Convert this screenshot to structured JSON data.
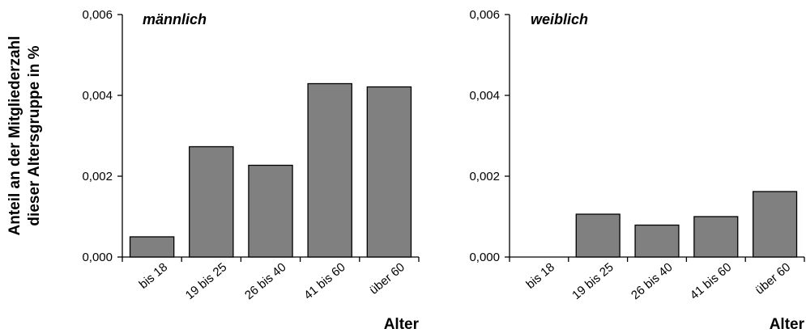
{
  "ylabel_lines": [
    "Anteil an der Mitgliederzahl",
    "dieser Altersgruppe in %"
  ],
  "xlabel": "Alter",
  "chart_data": [
    {
      "type": "bar",
      "title": "männlich",
      "categories": [
        "bis 18",
        "19 bis 25",
        "26 bis 40",
        "41 bis 60",
        "über 60"
      ],
      "values": [
        0.0005,
        0.00273,
        0.00227,
        0.00429,
        0.00421
      ],
      "ylim": [
        0,
        0.006
      ],
      "yticks": [
        "0,000",
        "0,002",
        "0,004",
        "0,006"
      ],
      "xlabel": "Alter",
      "grid": false,
      "bar_color": "#808080"
    },
    {
      "type": "bar",
      "title": "weiblich",
      "categories": [
        "bis 18",
        "19 bis 25",
        "26 bis 40",
        "41 bis 60",
        "über 60"
      ],
      "values": [
        0.0,
        0.00106,
        0.00079,
        0.001,
        0.00162
      ],
      "ylim": [
        0,
        0.006
      ],
      "yticks": [
        "0,000",
        "0,002",
        "0,004",
        "0,006"
      ],
      "xlabel": "Alter",
      "grid": false,
      "bar_color": "#808080"
    }
  ]
}
